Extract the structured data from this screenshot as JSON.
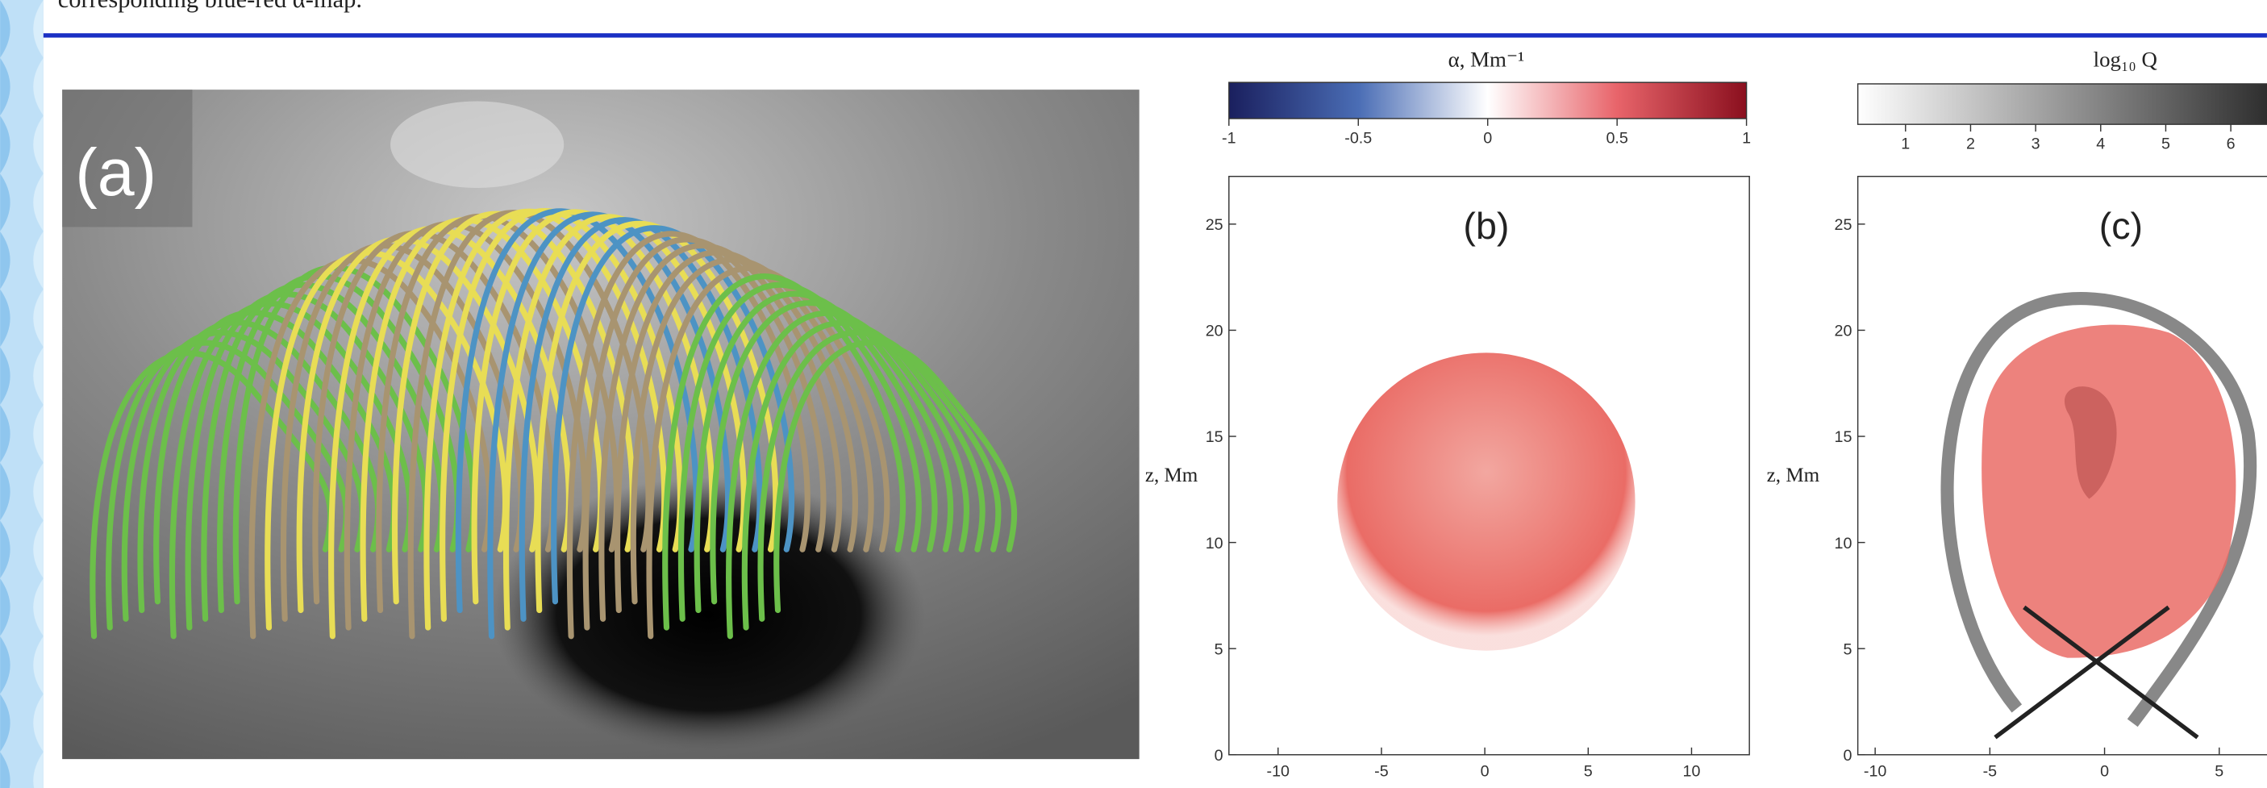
{
  "header": {
    "text": "corresponding blue-red α-map."
  },
  "panel_a": {
    "label": "(a)"
  },
  "panel_b": {
    "label": "(b)",
    "colorbar": {
      "title": "α, Mm⁻¹",
      "ticks": [
        -1,
        -0.5,
        0,
        0.5,
        1
      ]
    },
    "y_label": "z, Mm",
    "y_ticks": [
      0,
      5,
      10,
      15,
      20,
      25
    ],
    "x_ticks": [
      -10,
      -5,
      0,
      5,
      10
    ]
  },
  "panel_c": {
    "label": "(c)",
    "colorbar": {
      "title": "log₁₀ Q",
      "ticks": [
        1,
        2,
        3,
        4,
        5,
        6
      ]
    },
    "y_label": "z, Mm",
    "y_ticks": [
      0,
      5,
      10,
      15,
      20,
      25
    ],
    "x_ticks": [
      -10,
      -5,
      0,
      5
    ]
  }
}
